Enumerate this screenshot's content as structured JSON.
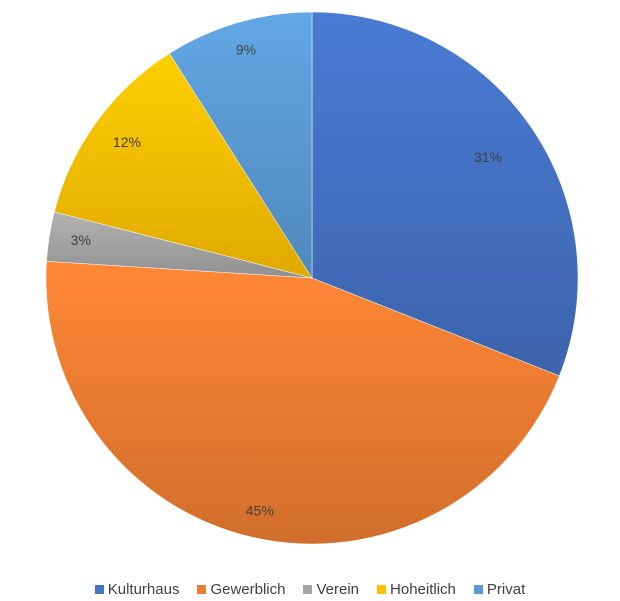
{
  "chart_data": {
    "type": "pie",
    "categories": [
      "Kulturhaus",
      "Gewerblich",
      "Verein",
      "Hoheitlich",
      "Privat"
    ],
    "values": [
      31,
      45,
      3,
      12,
      9
    ],
    "labels": [
      "31%",
      "45%",
      "3%",
      "12%",
      "9%"
    ],
    "colors": [
      "#4472c4",
      "#ed7d31",
      "#a5a5a5",
      "#ffc000",
      "#5b9bd5"
    ],
    "legend_position": "bottom",
    "start_angle": "12 o'clock",
    "direction": "clockwise"
  }
}
